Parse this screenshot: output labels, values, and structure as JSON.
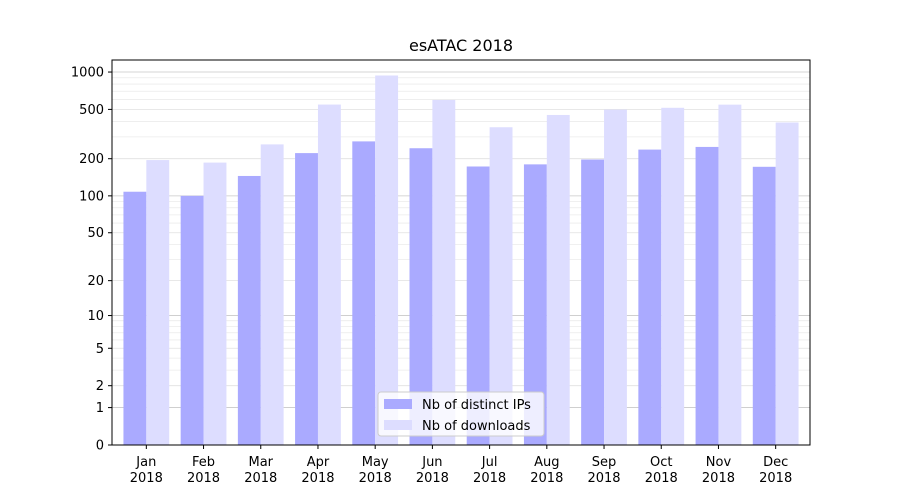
{
  "chart_data": {
    "type": "bar",
    "title": "esATAC 2018",
    "xlabel": "",
    "ylabel": "",
    "yscale": "log(1+y)",
    "ylim": [
      0,
      1250
    ],
    "yticks": [
      0,
      1,
      2,
      5,
      10,
      20,
      50,
      100,
      200,
      500,
      1000
    ],
    "grid": true,
    "legend_position": "bottom-center",
    "categories": [
      [
        "Jan",
        "2018"
      ],
      [
        "Feb",
        "2018"
      ],
      [
        "Mar",
        "2018"
      ],
      [
        "Apr",
        "2018"
      ],
      [
        "May",
        "2018"
      ],
      [
        "Jun",
        "2018"
      ],
      [
        "Jul",
        "2018"
      ],
      [
        "Aug",
        "2018"
      ],
      [
        "Sep",
        "2018"
      ],
      [
        "Oct",
        "2018"
      ],
      [
        "Nov",
        "2018"
      ],
      [
        "Dec",
        "2018"
      ]
    ],
    "series": [
      {
        "name": "Nb of distinct IPs",
        "color": "#aaaaff",
        "values": [
          108,
          100,
          145,
          222,
          276,
          243,
          173,
          180,
          197,
          237,
          249,
          172
        ]
      },
      {
        "name": "Nb of downloads",
        "color": "#ddddff",
        "values": [
          195,
          186,
          261,
          547,
          938,
          596,
          359,
          451,
          498,
          515,
          546,
          392
        ]
      }
    ]
  }
}
